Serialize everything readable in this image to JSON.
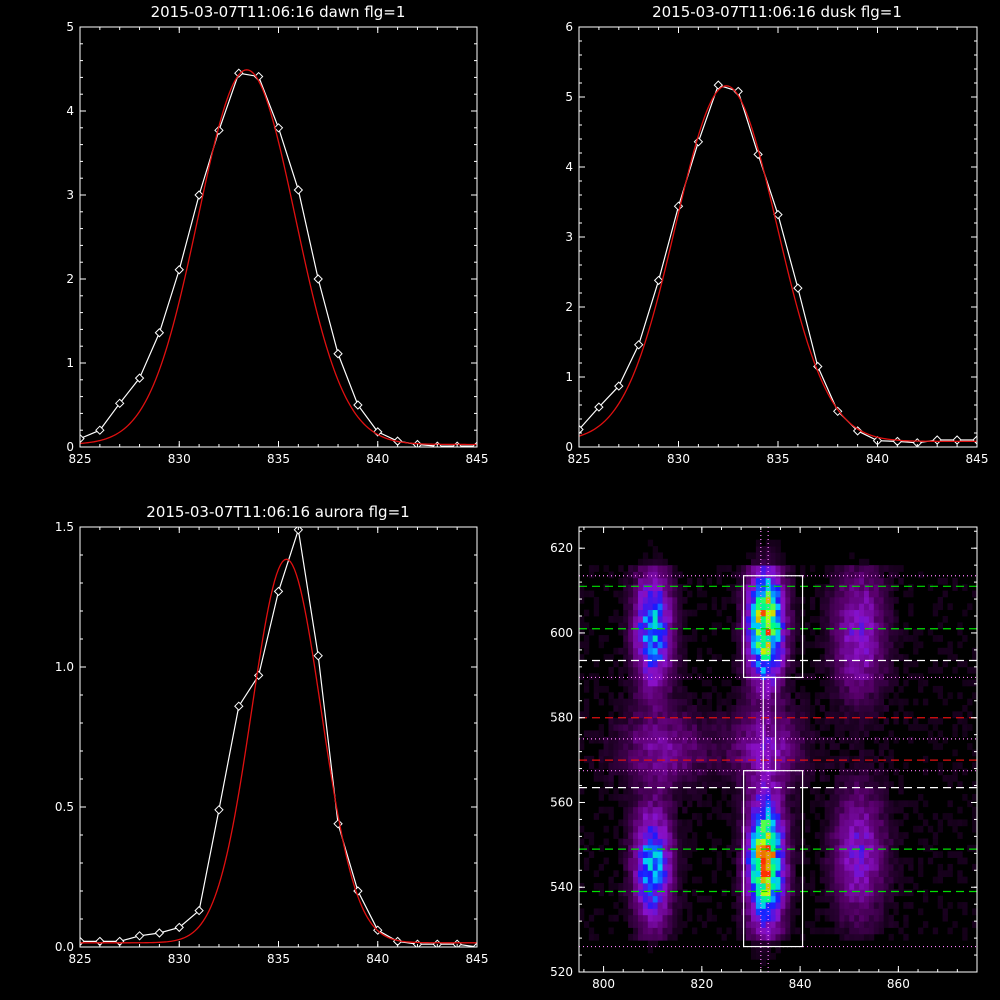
{
  "chart_data": [
    {
      "type": "line",
      "title": "2015-03-07T11:06:16 dawn flg=1",
      "xlim": [
        825,
        845
      ],
      "ylim": [
        0,
        5
      ],
      "xticks": [
        "825",
        "830",
        "835",
        "840",
        "845"
      ],
      "yticks": [
        "0",
        "1",
        "2",
        "3",
        "4",
        "5"
      ],
      "xtick_values": [
        825,
        830,
        835,
        840,
        845
      ],
      "ytick_values": [
        0,
        1,
        2,
        3,
        4,
        5
      ],
      "series": [
        {
          "color": "#ffffff",
          "markers": "diamond",
          "x": [
            825,
            826,
            827,
            828,
            829,
            830,
            831,
            832,
            833,
            834,
            835,
            836,
            837,
            838,
            839,
            840,
            841,
            842,
            843,
            844,
            845
          ],
          "y": [
            0.1,
            0.2,
            0.52,
            0.82,
            1.36,
            2.11,
            3.0,
            3.77,
            4.45,
            4.41,
            3.8,
            3.06,
            2.0,
            1.11,
            0.5,
            0.18,
            0.07,
            0.03,
            0.01,
            0.01,
            0.01
          ]
        },
        {
          "color": "#e01010",
          "markers": "none",
          "fit": {
            "amplitude": 4.46,
            "center": 833.4,
            "sigma": 2.45,
            "offset": 0.03
          }
        }
      ]
    },
    {
      "type": "line",
      "title": "2015-03-07T11:06:16 dusk flg=1",
      "xlim": [
        825,
        845
      ],
      "ylim": [
        0,
        6
      ],
      "xticks": [
        "825",
        "830",
        "835",
        "840",
        "845"
      ],
      "yticks": [
        "0",
        "1",
        "2",
        "3",
        "4",
        "5",
        "6"
      ],
      "xtick_values": [
        825,
        830,
        835,
        840,
        845
      ],
      "ytick_values": [
        0,
        1,
        2,
        3,
        4,
        5,
        6
      ],
      "series": [
        {
          "color": "#ffffff",
          "markers": "diamond",
          "x": [
            825,
            826,
            827,
            828,
            829,
            830,
            831,
            832,
            833,
            834,
            835,
            836,
            837,
            838,
            839,
            840,
            841,
            842,
            843,
            844,
            845
          ],
          "y": [
            0.25,
            0.57,
            0.87,
            1.46,
            2.38,
            3.44,
            4.36,
            5.17,
            5.08,
            4.18,
            3.32,
            2.27,
            1.15,
            0.51,
            0.23,
            0.09,
            0.08,
            0.06,
            0.1,
            0.1,
            0.1
          ]
        },
        {
          "color": "#e01010",
          "markers": "none",
          "fit": {
            "amplitude": 5.08,
            "center": 832.4,
            "sigma": 2.55,
            "offset": 0.08
          }
        }
      ]
    },
    {
      "type": "line",
      "title": "2015-03-07T11:06:16 aurora flg=1",
      "xlim": [
        825,
        845
      ],
      "ylim": [
        0,
        1.5
      ],
      "xticks": [
        "825",
        "830",
        "835",
        "840",
        "845"
      ],
      "yticks": [
        "0.0",
        "0.5",
        "1.0",
        "1.5"
      ],
      "xtick_values": [
        825,
        830,
        835,
        840,
        845
      ],
      "ytick_values": [
        0,
        0.5,
        1.0,
        1.5
      ],
      "series": [
        {
          "color": "#ffffff",
          "markers": "diamond",
          "x": [
            825,
            826,
            827,
            828,
            829,
            830,
            831,
            832,
            833,
            834,
            835,
            836,
            837,
            838,
            839,
            840,
            841,
            842,
            843,
            844,
            845
          ],
          "y": [
            0.02,
            0.02,
            0.02,
            0.04,
            0.05,
            0.07,
            0.13,
            0.49,
            0.86,
            0.97,
            1.27,
            1.49,
            1.04,
            0.44,
            0.2,
            0.06,
            0.02,
            0.01,
            0.01,
            0.01,
            0.0
          ]
        },
        {
          "color": "#e01010",
          "markers": "none",
          "fit": {
            "amplitude": 1.37,
            "center": 835.4,
            "sigma": 1.75,
            "offset": 0.015
          }
        }
      ]
    },
    {
      "type": "heatmap",
      "title": "",
      "xlim": [
        795,
        876
      ],
      "ylim": [
        520,
        625
      ],
      "xticks": [
        "800",
        "820",
        "840",
        "860"
      ],
      "yticks": [
        "520",
        "540",
        "560",
        "580",
        "600",
        "620"
      ],
      "xtick_values": [
        800,
        820,
        840,
        860
      ],
      "ytick_values": [
        520,
        540,
        560,
        580,
        600,
        620
      ],
      "colormap": [
        "#000000",
        "#5a006e",
        "#8a10c8",
        "#1a1aff",
        "#00c8ff",
        "#00ff80",
        "#c8ff00",
        "#ff3000"
      ],
      "blobs": [
        {
          "x": 810,
          "y": 601,
          "sx": 2.5,
          "sy": 9,
          "level": 0.55
        },
        {
          "x": 810,
          "y": 545,
          "sx": 2.5,
          "sy": 9,
          "level": 0.55
        },
        {
          "x": 833,
          "y": 602,
          "sx": 2.4,
          "sy": 9,
          "level": 0.9
        },
        {
          "x": 833,
          "y": 546,
          "sx": 2.4,
          "sy": 10,
          "level": 0.95
        },
        {
          "x": 852,
          "y": 600,
          "sx": 3.5,
          "sy": 10,
          "level": 0.28
        },
        {
          "x": 852,
          "y": 548,
          "sx": 3.5,
          "sy": 10,
          "level": 0.28
        },
        {
          "x": 812,
          "y": 573,
          "sx": 6,
          "sy": 6,
          "level": 0.18
        },
        {
          "x": 833,
          "y": 573,
          "sx": 5,
          "sy": 6,
          "level": 0.22
        }
      ],
      "hlines": [
        {
          "y": 611,
          "color": "#00e000",
          "style": "dashed"
        },
        {
          "y": 601,
          "color": "#00e000",
          "style": "dashed"
        },
        {
          "y": 549,
          "color": "#00e000",
          "style": "dashed"
        },
        {
          "y": 539,
          "color": "#00e000",
          "style": "dashed"
        },
        {
          "y": 593.5,
          "color": "#ffffff",
          "style": "dashed"
        },
        {
          "y": 563.5,
          "color": "#ffffff",
          "style": "dashed"
        },
        {
          "y": 580,
          "color": "#e01010",
          "style": "dashed"
        },
        {
          "y": 570,
          "color": "#e01010",
          "style": "dashed"
        },
        {
          "y": 613.5,
          "color": "#ff80ff",
          "style": "dotted"
        },
        {
          "y": 589.5,
          "color": "#ff80ff",
          "style": "dotted"
        },
        {
          "y": 575,
          "color": "#ff80ff",
          "style": "dotted"
        },
        {
          "y": 567.5,
          "color": "#ff80ff",
          "style": "dotted"
        },
        {
          "y": 526,
          "color": "#ff80ff",
          "style": "dotted"
        }
      ],
      "vlines": [
        {
          "x": 832,
          "color": "#ff80ff",
          "style": "dotted"
        },
        {
          "x": 833.5,
          "color": "#ff80ff",
          "style": "dotted"
        }
      ],
      "boxes": [
        {
          "x0": 828.5,
          "x1": 840.5,
          "y0": 589.5,
          "y1": 613.5,
          "color": "#ffffff"
        },
        {
          "x0": 828.5,
          "x1": 840.5,
          "y0": 526,
          "y1": 567.5,
          "color": "#ffffff"
        },
        {
          "x0": 832.5,
          "x1": 835,
          "y0": 567.5,
          "y1": 589.5,
          "color": "#ffffff"
        }
      ]
    }
  ]
}
